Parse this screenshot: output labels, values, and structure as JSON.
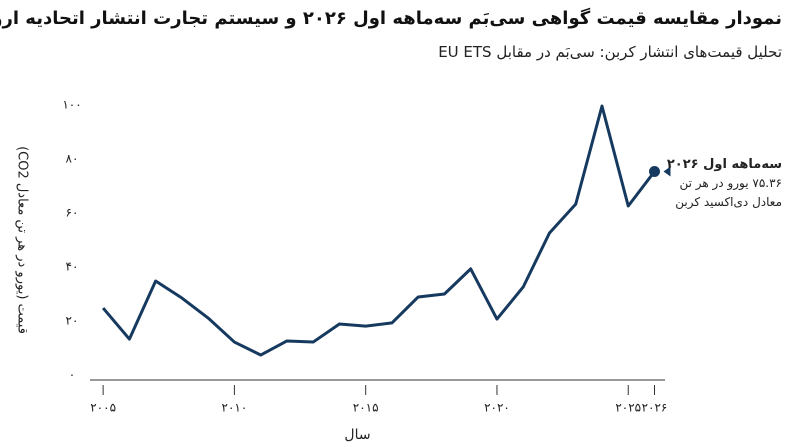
{
  "chart_data": {
    "type": "line",
    "title": "نمودار مقایسه قیمت گواهی سی‌بَم سه‌ماهه اول ۲۰۲۶ و سیستم تجارت انتشار اتحادیه اروپا",
    "subtitle": "تحلیل قیمت‌های انتشار کربن: سی‌بَم در مقابل EU ETS",
    "xlabel": "سال",
    "ylabel": "قیمت (یورو در هر تن معادل CO2)",
    "x": [
      2005,
      2006,
      2007,
      2008,
      2009,
      2010,
      2011,
      2012,
      2013,
      2014,
      2015,
      2016,
      2017,
      2018,
      2019,
      2020,
      2021,
      2022,
      2023,
      2024,
      2025,
      2026
    ],
    "series": [
      {
        "name": "EU ETS",
        "color": "#163a5f",
        "values": [
          24.8,
          13.3,
          34.8,
          28.5,
          21.1,
          12.2,
          7.4,
          12.6,
          12.2,
          18.9,
          18.1,
          19.3,
          28.9,
          30.0,
          39.3,
          20.7,
          32.6,
          52.6,
          63.3,
          99.6,
          62.6,
          75.36
        ]
      }
    ],
    "annotation": {
      "title": "سه‌ماهه اول ۲۰۲۶",
      "lines": [
        "۷۵.۳۶ یورو در هر تن",
        "معادل دی‌اکسید کربن"
      ]
    },
    "xlim": [
      2004.5,
      2026.4
    ],
    "ylim": [
      0,
      100
    ],
    "xticks": [
      {
        "value": 2005,
        "label": "۲۰۰۵"
      },
      {
        "value": 2010,
        "label": "۲۰۱۰"
      },
      {
        "value": 2015,
        "label": "۲۰۱۵"
      },
      {
        "value": 2020,
        "label": "۲۰۲۰"
      },
      {
        "value": 2025,
        "label": "۲۰۲۵"
      },
      {
        "value": 2026,
        "label": "۲۰۲۶"
      }
    ],
    "yticks": [
      {
        "value": 0,
        "label": "۰"
      },
      {
        "value": 20,
        "label": "۲۰"
      },
      {
        "value": 40,
        "label": "۴۰"
      },
      {
        "value": 60,
        "label": "۶۰"
      },
      {
        "value": 80,
        "label": "۸۰"
      },
      {
        "value": 100,
        "label": "۱۰۰"
      }
    ],
    "grid": false
  }
}
